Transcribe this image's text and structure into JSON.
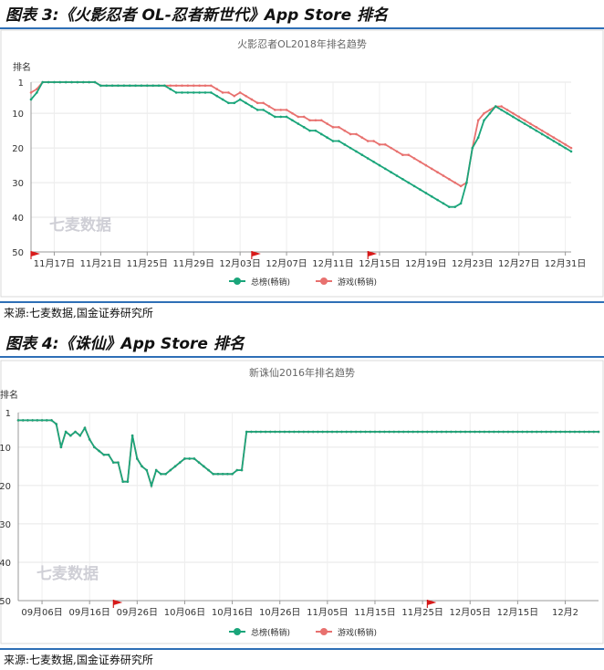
{
  "figure1": {
    "title": "图表 3:《火影忍者 OL-忍者新世代》App Store 排名",
    "source": "来源:七麦数据,国金证券研究所"
  },
  "figure2": {
    "title": "图表 4:《诛仙》App Store 排名",
    "source": "来源:七麦数据,国金证券研究所"
  },
  "chart_data": [
    {
      "type": "line",
      "title": "火影忍者OL2018年排名趋势",
      "ylabel": "排名",
      "xlabel": "",
      "y_ticks": [
        1,
        10,
        20,
        30,
        40,
        50
      ],
      "ylim": [
        1,
        50
      ],
      "y_inverted": true,
      "x_tick_labels": [
        "11月17日",
        "11月21日",
        "11月25日",
        "11月29日",
        "12月03日",
        "12月07日",
        "12月11日",
        "12月15日",
        "12月19日",
        "12月23日",
        "12月27日",
        "12月31日"
      ],
      "x_tick_index": [
        4,
        12,
        20,
        28,
        36,
        44,
        52,
        60,
        68,
        76,
        84,
        92
      ],
      "watermark": "七麦数据",
      "flags_at_index": [
        0,
        38,
        58
      ],
      "legend_position": "bottom-center",
      "colors": [
        "#1aa57a",
        "#e8716f"
      ],
      "series": [
        {
          "name": "总榜(畅销)",
          "values": [
            6,
            4,
            1,
            1,
            1,
            1,
            1,
            1,
            1,
            1,
            1,
            1,
            2,
            2,
            2,
            2,
            2,
            2,
            2,
            2,
            2,
            2,
            2,
            2,
            3,
            4,
            4,
            4,
            4,
            4,
            4,
            4,
            5,
            6,
            7,
            7,
            6,
            7,
            8,
            9,
            9,
            10,
            11,
            11,
            11,
            12,
            13,
            14,
            15,
            15,
            16,
            17,
            18,
            18,
            19,
            20,
            21,
            22,
            23,
            24,
            25,
            26,
            27,
            28,
            29,
            30,
            31,
            32,
            33,
            34,
            35,
            36,
            37,
            37,
            36,
            30,
            20,
            17,
            12,
            10,
            8,
            9,
            10,
            11,
            12,
            13,
            14,
            15,
            16,
            17,
            18,
            19,
            20,
            21
          ]
        },
        {
          "name": "游戏(畅销)",
          "values": [
            4,
            3,
            1,
            1,
            1,
            1,
            1,
            1,
            1,
            1,
            1,
            1,
            2,
            2,
            2,
            2,
            2,
            2,
            2,
            2,
            2,
            2,
            2,
            2,
            2,
            2,
            2,
            2,
            2,
            2,
            2,
            2,
            3,
            4,
            4,
            5,
            4,
            5,
            6,
            7,
            7,
            8,
            9,
            9,
            9,
            10,
            11,
            11,
            12,
            12,
            12,
            13,
            14,
            14,
            15,
            16,
            16,
            17,
            18,
            18,
            19,
            19,
            20,
            21,
            22,
            22,
            23,
            24,
            25,
            26,
            27,
            28,
            29,
            30,
            31,
            30,
            20,
            12,
            10,
            9,
            8,
            8,
            9,
            10,
            11,
            12,
            13,
            14,
            15,
            16,
            17,
            18,
            19,
            20
          ]
        }
      ]
    },
    {
      "type": "line",
      "title": "新诛仙2016年排名趋势",
      "ylabel": "排名",
      "xlabel": "",
      "y_ticks": [
        1,
        10,
        20,
        30,
        40,
        50
      ],
      "ylim": [
        1,
        50
      ],
      "y_inverted": true,
      "x_tick_labels": [
        "09月06日",
        "09月16日",
        "09月26日",
        "10月06日",
        "10月16日",
        "10月26日",
        "11月05日",
        "11月15日",
        "11月25日",
        "12月05日",
        "12月15日",
        "12月2"
      ],
      "x_tick_index": [
        5,
        15,
        25,
        35,
        45,
        55,
        65,
        75,
        85,
        95,
        105,
        115
      ],
      "watermark": "七麦数据",
      "flags_at_index": [
        20,
        86
      ],
      "legend_position": "bottom-center",
      "colors": [
        "#1aa57a",
        "#e8716f"
      ],
      "series": [
        {
          "name": "总榜(畅销)",
          "values": [
            3,
            3,
            3,
            3,
            3,
            3,
            3,
            3,
            4,
            10,
            6,
            7,
            6,
            7,
            5,
            8,
            10,
            11,
            12,
            12,
            14,
            14,
            19,
            19,
            7,
            13,
            15,
            16,
            20,
            16,
            17,
            17,
            16,
            15,
            14,
            13,
            13,
            13,
            14,
            15,
            16,
            17,
            17,
            17,
            17,
            17,
            16,
            16,
            6,
            6,
            6,
            6,
            6,
            6,
            6,
            6,
            6,
            6,
            6,
            6,
            6,
            6,
            6,
            6,
            6,
            6,
            6,
            6,
            6,
            6,
            6,
            6,
            6,
            6,
            6,
            6,
            6,
            6,
            6,
            6,
            6,
            6,
            6,
            6,
            6,
            6,
            6,
            6,
            6,
            6,
            6,
            6,
            6,
            6,
            6,
            6,
            6,
            6,
            6,
            6,
            6,
            6,
            6,
            6,
            6,
            6,
            6,
            6,
            6,
            6,
            6,
            6,
            6,
            6,
            6,
            6,
            6,
            6,
            6,
            6,
            6,
            6,
            6
          ]
        },
        {
          "name": "游戏(畅销)",
          "values": [
            3,
            3,
            3,
            3,
            3,
            3,
            3,
            3,
            4,
            10,
            6,
            7,
            6,
            7,
            5,
            8,
            10,
            11,
            12,
            12,
            14,
            14,
            19,
            19,
            7,
            13,
            15,
            16,
            20,
            16,
            17,
            17,
            16,
            15,
            14,
            13,
            13,
            13,
            14,
            15,
            16,
            17,
            17,
            17,
            17,
            17,
            16,
            16,
            6,
            6,
            6,
            6,
            6,
            6,
            6,
            6,
            6,
            6,
            6,
            6,
            6,
            6,
            6,
            6,
            6,
            6,
            6,
            6,
            6,
            6,
            6,
            6,
            6,
            6,
            6,
            6,
            6,
            6,
            6,
            6,
            6,
            6,
            6,
            6,
            6,
            6,
            6,
            6,
            6,
            6,
            6,
            6,
            6,
            6,
            6,
            6,
            6,
            6,
            6,
            6,
            6,
            6,
            6,
            6,
            6,
            6,
            6,
            6,
            6,
            6,
            6,
            6,
            6,
            6,
            6,
            6,
            6,
            6,
            6,
            6,
            6,
            6,
            6
          ]
        }
      ]
    }
  ]
}
